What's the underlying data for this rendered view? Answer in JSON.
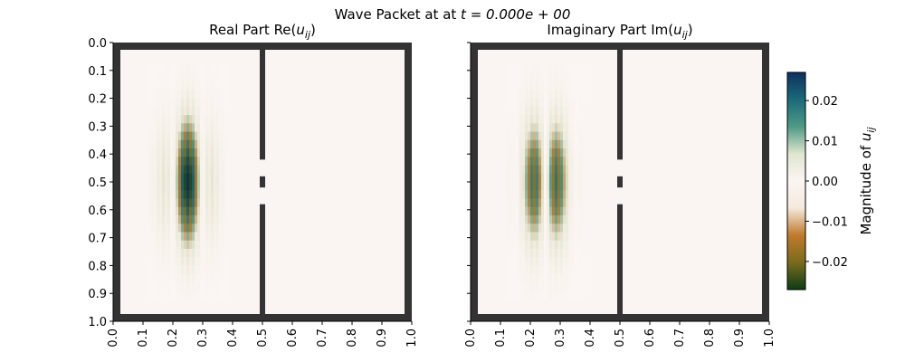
{
  "figure": {
    "suptitle_prefix": "Wave Packet at at ",
    "suptitle_math": "t = 0.000e + 00"
  },
  "chart_data": [
    {
      "type": "heatmap",
      "title_text": "Real Part Re(",
      "title_math": "u",
      "title_sub": "ij",
      "title_close": ")",
      "component": "real",
      "xlim": [
        0,
        1
      ],
      "ylim": [
        1,
        0
      ],
      "x_ticks": [
        "0.0",
        "0.1",
        "0.2",
        "0.3",
        "0.4",
        "0.5",
        "0.6",
        "0.7",
        "0.8",
        "0.9",
        "1.0"
      ],
      "y_ticks": [
        "0.0",
        "0.1",
        "0.2",
        "0.3",
        "0.4",
        "0.5",
        "0.6",
        "0.7",
        "0.8",
        "0.9",
        "1.0"
      ],
      "wave_packet": {
        "x0": 0.25,
        "y0": 0.5,
        "sigma_x": 0.05,
        "sigma_y": 0.15,
        "wavelength": 0.0167,
        "peak": 0.027
      },
      "walls": {
        "border": true,
        "barrier_x": 0.5,
        "slits_y": [
          [
            0.42,
            0.48
          ],
          [
            0.52,
            0.58
          ]
        ]
      }
    },
    {
      "type": "heatmap",
      "title_text": "Imaginary Part Im(",
      "title_math": "u",
      "title_sub": "ij",
      "title_close": ")",
      "component": "imag",
      "xlim": [
        0,
        1
      ],
      "ylim": [
        1,
        0
      ],
      "x_ticks": [
        "0.0",
        "0.1",
        "0.2",
        "0.3",
        "0.4",
        "0.5",
        "0.6",
        "0.7",
        "0.8",
        "0.9",
        "1.0"
      ],
      "y_ticks": [],
      "wave_packet": {
        "x0": 0.25,
        "y0": 0.5,
        "sigma_x": 0.05,
        "sigma_y": 0.15,
        "wavelength": 0.0167,
        "peak": 0.027
      },
      "walls": {
        "border": true,
        "barrier_x": 0.5,
        "slits_y": [
          [
            0.42,
            0.48
          ],
          [
            0.52,
            0.58
          ]
        ]
      }
    }
  ],
  "colorbar": {
    "label_text": "Magnitude of ",
    "label_math": "u",
    "label_sub": "ij",
    "range": [
      -0.027,
      0.027
    ],
    "ticks": [
      {
        "value": 0.02,
        "label": "0.02"
      },
      {
        "value": 0.01,
        "label": "0.01"
      },
      {
        "value": 0.0,
        "label": "0.00"
      },
      {
        "value": -0.01,
        "label": "−0.01"
      },
      {
        "value": -0.02,
        "label": "−0.02"
      }
    ],
    "colors": [
      "#0c3c14",
      "#7a6b1c",
      "#c07a2c",
      "#f4e9dc",
      "#fbf5f3",
      "#dfe6cf",
      "#4f9a85",
      "#1a6a7a",
      "#0e2f5e"
    ]
  },
  "style": {
    "wall_color": "#333333",
    "background_color": "#faf4f2"
  }
}
